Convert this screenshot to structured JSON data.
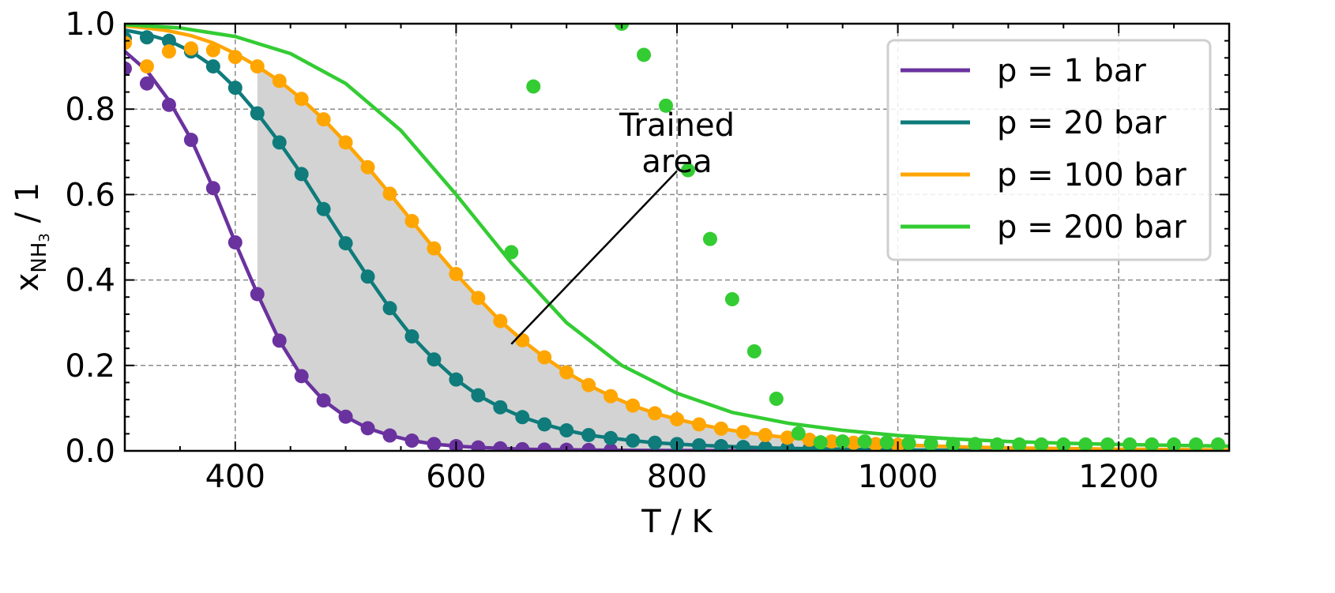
{
  "chart_data": {
    "type": "line",
    "xlabel": "T / K",
    "ylabel_main": "x",
    "ylabel_sub": "NH",
    "ylabel_subsub": "3",
    "ylabel_rest": " / 1",
    "xlim": [
      300,
      1300
    ],
    "ylim": [
      0.0,
      1.0
    ],
    "xticks": [
      400,
      600,
      800,
      1000,
      1200
    ],
    "yticks": [
      0.0,
      0.2,
      0.4,
      0.6,
      0.8,
      1.0
    ],
    "xtick_labels": [
      "400",
      "600",
      "800",
      "1000",
      "1200"
    ],
    "ytick_labels": [
      "0.0",
      "0.2",
      "0.4",
      "0.6",
      "0.8",
      "1.0"
    ],
    "grid": true,
    "legend_position": "top-right",
    "annotation": {
      "lines": [
        "Trained",
        "area"
      ],
      "text_at": [
        800,
        0.73
      ],
      "arrow_from": [
        800,
        0.655
      ],
      "arrow_to": [
        650,
        0.25
      ]
    },
    "trained_area": {
      "x_start": 420,
      "lower_series": "p = 1 bar",
      "upper_series": "p = 100 bar"
    },
    "series": [
      {
        "name": "p = 1 bar",
        "color": "#6a329f",
        "curve_x": [
          300,
          320,
          340,
          360,
          380,
          400,
          420,
          440,
          460,
          480,
          500,
          520,
          540,
          560,
          580,
          600,
          620,
          640,
          660,
          680,
          700,
          720,
          740,
          760,
          780,
          800,
          850,
          900,
          950,
          1000,
          1100,
          1200,
          1300
        ],
        "curve_y": [
          0.935,
          0.89,
          0.82,
          0.73,
          0.615,
          0.488,
          0.368,
          0.258,
          0.175,
          0.118,
          0.08,
          0.053,
          0.036,
          0.024,
          0.016,
          0.011,
          0.008,
          0.006,
          0.004,
          0.003,
          0.0025,
          0.002,
          0.0015,
          0.0012,
          0.001,
          0.0008,
          0.0005,
          0.0003,
          0.0002,
          0.0001,
          0.0,
          0.0,
          0.0
        ],
        "points_x": [
          300,
          320,
          340,
          360,
          380,
          400,
          420,
          440,
          460,
          480,
          500,
          520,
          540,
          560,
          580,
          600,
          620,
          640,
          660,
          680,
          700,
          720,
          740
        ],
        "points_y": [
          0.895,
          0.86,
          0.81,
          0.728,
          0.615,
          0.488,
          0.367,
          0.258,
          0.175,
          0.118,
          0.08,
          0.053,
          0.036,
          0.024,
          0.016,
          0.011,
          0.008,
          0.006,
          0.004,
          0.003,
          0.0025,
          0.002,
          0.0015
        ]
      },
      {
        "name": "p = 20 bar",
        "color": "#0f7b7b",
        "curve_x": [
          300,
          320,
          340,
          360,
          380,
          400,
          420,
          440,
          460,
          480,
          500,
          520,
          540,
          560,
          580,
          600,
          620,
          640,
          660,
          680,
          700,
          720,
          740,
          760,
          780,
          800,
          820,
          840,
          860,
          880,
          900,
          950,
          1000,
          1100,
          1200,
          1300
        ],
        "curve_y": [
          0.985,
          0.975,
          0.96,
          0.935,
          0.9,
          0.85,
          0.79,
          0.722,
          0.648,
          0.566,
          0.486,
          0.408,
          0.334,
          0.268,
          0.214,
          0.167,
          0.13,
          0.102,
          0.079,
          0.062,
          0.048,
          0.037,
          0.03,
          0.024,
          0.019,
          0.016,
          0.013,
          0.011,
          0.009,
          0.007,
          0.006,
          0.004,
          0.002,
          0.001,
          0.0005,
          0.0002
        ],
        "points_x": [
          300,
          320,
          340,
          360,
          380,
          400,
          420,
          440,
          460,
          480,
          500,
          520,
          540,
          560,
          580,
          600,
          620,
          640,
          660,
          680,
          700,
          720,
          740,
          760,
          780,
          800,
          820,
          840,
          860,
          880,
          900,
          920
        ],
        "points_y": [
          0.965,
          0.968,
          0.96,
          0.935,
          0.9,
          0.85,
          0.79,
          0.722,
          0.648,
          0.566,
          0.486,
          0.408,
          0.334,
          0.268,
          0.214,
          0.167,
          0.13,
          0.102,
          0.079,
          0.062,
          0.048,
          0.037,
          0.03,
          0.024,
          0.019,
          0.016,
          0.013,
          0.011,
          0.009,
          0.007,
          0.006,
          0.005
        ]
      },
      {
        "name": "p = 100 bar",
        "color": "#ffa500",
        "curve_x": [
          300,
          320,
          340,
          360,
          380,
          400,
          420,
          440,
          460,
          480,
          500,
          520,
          540,
          560,
          580,
          600,
          620,
          640,
          660,
          680,
          700,
          720,
          740,
          760,
          780,
          800,
          820,
          840,
          860,
          880,
          900,
          920,
          940,
          960,
          980,
          1000,
          1050,
          1100,
          1200,
          1300
        ],
        "curve_y": [
          0.995,
          0.99,
          0.983,
          0.972,
          0.955,
          0.93,
          0.9,
          0.866,
          0.824,
          0.776,
          0.722,
          0.664,
          0.602,
          0.538,
          0.474,
          0.414,
          0.358,
          0.304,
          0.259,
          0.219,
          0.184,
          0.154,
          0.128,
          0.106,
          0.088,
          0.074,
          0.062,
          0.052,
          0.044,
          0.037,
          0.031,
          0.026,
          0.022,
          0.019,
          0.016,
          0.014,
          0.01,
          0.007,
          0.004,
          0.002
        ],
        "points_x": [
          300,
          320,
          340,
          360,
          380,
          400,
          420,
          440,
          460,
          480,
          500,
          520,
          540,
          560,
          580,
          600,
          620,
          640,
          660,
          680,
          700,
          720,
          740,
          760,
          780,
          800,
          820,
          840,
          860,
          880,
          900,
          920,
          940,
          960,
          980,
          1000
        ],
        "points_y": [
          0.955,
          0.9,
          0.935,
          0.942,
          0.938,
          0.922,
          0.9,
          0.866,
          0.824,
          0.776,
          0.722,
          0.664,
          0.602,
          0.538,
          0.474,
          0.414,
          0.358,
          0.304,
          0.259,
          0.219,
          0.184,
          0.154,
          0.128,
          0.106,
          0.088,
          0.074,
          0.062,
          0.052,
          0.044,
          0.037,
          0.031,
          0.026,
          0.022,
          0.019,
          0.016,
          0.014
        ]
      },
      {
        "name": "p = 200 bar",
        "color": "#33cc33",
        "curve_x": [
          300,
          350,
          400,
          450,
          500,
          550,
          600,
          650,
          700,
          750,
          800,
          850,
          900,
          950,
          1000,
          1050,
          1100,
          1150,
          1200,
          1250,
          1300
        ],
        "curve_y": [
          0.998,
          0.99,
          0.97,
          0.93,
          0.86,
          0.75,
          0.6,
          0.44,
          0.3,
          0.2,
          0.135,
          0.09,
          0.065,
          0.048,
          0.036,
          0.028,
          0.022,
          0.018,
          0.015,
          0.013,
          0.011
        ],
        "points_x": [
          650,
          670,
          750,
          770,
          790,
          810,
          830,
          850,
          870,
          890,
          910,
          930,
          950,
          970,
          990,
          1010,
          1030,
          1050,
          1070,
          1090,
          1110,
          1130,
          1150,
          1170,
          1190,
          1210,
          1230,
          1250,
          1270,
          1290
        ],
        "points_y": [
          0.465,
          0.853,
          1.0,
          0.927,
          0.808,
          0.657,
          0.496,
          0.355,
          0.233,
          0.122,
          0.041,
          0.02,
          0.022,
          0.022,
          0.02,
          0.018,
          0.017,
          0.016,
          0.016,
          0.015,
          0.015,
          0.015,
          0.015,
          0.015,
          0.015,
          0.015,
          0.015,
          0.015,
          0.015,
          0.015
        ]
      }
    ]
  }
}
